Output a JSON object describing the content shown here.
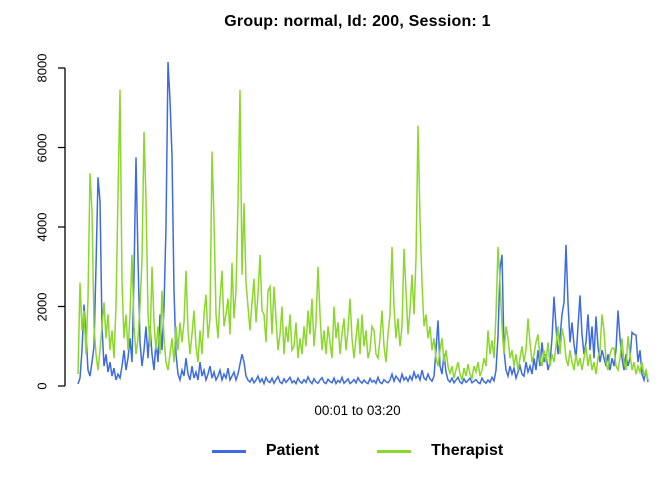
{
  "chart_data": {
    "type": "line",
    "title": "Group: normal, Id: 200, Session: 1",
    "xlabel": "00:01 to 03:20",
    "ylabel": "",
    "ylim": [
      0,
      8200
    ],
    "yticks": [
      0,
      2000,
      4000,
      6000,
      8000
    ],
    "grid": false,
    "legend_position": "bottom",
    "x_axis_ticks": "none",
    "series": [
      {
        "name": "Patient",
        "color": "#3D6BE1",
        "values": [
          50,
          200,
          900,
          2050,
          1300,
          400,
          250,
          600,
          1000,
          3000,
          5250,
          4650,
          1500,
          500,
          800,
          350,
          600,
          250,
          450,
          150,
          300,
          200,
          500,
          900,
          400,
          700,
          1200,
          600,
          2800,
          5750,
          3200,
          1100,
          500,
          900,
          1500,
          700,
          1500,
          800,
          400,
          1100,
          600,
          1800,
          900,
          2000,
          4000,
          8150,
          7200,
          5800,
          2400,
          800,
          300,
          150,
          400,
          250,
          700,
          300,
          150,
          500,
          200,
          350,
          150,
          600,
          250,
          400,
          150,
          300,
          500,
          200,
          350,
          150,
          250,
          400,
          150,
          300,
          200,
          450,
          150,
          250,
          350,
          150,
          300,
          550,
          800,
          600,
          250,
          150,
          100,
          200,
          80,
          150,
          250,
          100,
          180,
          60,
          220,
          120,
          90,
          200,
          70,
          160,
          240,
          100,
          60,
          180,
          90,
          150,
          220,
          80,
          130,
          60,
          200,
          110,
          70,
          160,
          90,
          230,
          120,
          60,
          180,
          100,
          70,
          150,
          210,
          90,
          60,
          170,
          110,
          80,
          200,
          60,
          140,
          90,
          220,
          70,
          120,
          180,
          60,
          100,
          160,
          80,
          210,
          120,
          70,
          150,
          90,
          60,
          190,
          100,
          140,
          70,
          220,
          90,
          60,
          160,
          110,
          80,
          150,
          300,
          120,
          250,
          180,
          100,
          300,
          150,
          220,
          120,
          250,
          150,
          350,
          200,
          280,
          150,
          400,
          200,
          150,
          300,
          180,
          120,
          250,
          900,
          1650,
          500,
          300,
          800,
          350,
          150,
          100,
          200,
          80,
          150,
          220,
          100,
          60,
          180,
          90,
          140,
          200,
          80,
          120,
          160,
          90,
          60,
          200,
          110,
          70,
          150,
          90,
          220,
          130,
          400,
          1250,
          2950,
          3300,
          900,
          400,
          250,
          500,
          300,
          450,
          200,
          350,
          500,
          300,
          250,
          600,
          350,
          500,
          300,
          700,
          400,
          900,
          500,
          1100,
          600,
          800,
          400,
          600,
          1200,
          2250,
          1500,
          800,
          1200,
          1800,
          2100,
          3550,
          2100,
          1100,
          1600,
          1050,
          700,
          1500,
          2280,
          1300,
          800,
          1100,
          1800,
          900,
          1500,
          700,
          1750,
          1000,
          600,
          900,
          700,
          500,
          800,
          400,
          700,
          500,
          900,
          1900,
          1200,
          700,
          400,
          800,
          500,
          700,
          1350,
          1300,
          1280,
          600,
          900,
          300,
          150,
          400,
          100
        ]
      },
      {
        "name": "Therapist",
        "color": "#8CD72D",
        "values": [
          300,
          2600,
          1400,
          1900,
          800,
          2200,
          5350,
          4400,
          1500,
          800,
          400,
          900,
          1500,
          2100,
          1200,
          1800,
          900,
          1400,
          700,
          2000,
          4800,
          7450,
          2600,
          1200,
          1800,
          900,
          1800,
          3300,
          1500,
          800,
          1200,
          2000,
          3200,
          6400,
          4700,
          1800,
          1000,
          3000,
          1600,
          900,
          1500,
          800,
          2400,
          1200,
          600,
          400,
          800,
          1200,
          600,
          1500,
          900,
          1600,
          1100,
          1600,
          2900,
          1400,
          800,
          1300,
          1900,
          1000,
          600,
          1400,
          800,
          1800,
          2300,
          1200,
          1700,
          5900,
          4200,
          1800,
          1200,
          2200,
          2900,
          1500,
          1800,
          2200,
          1300,
          3100,
          1700,
          2400,
          4600,
          7450,
          2800,
          4600,
          2600,
          2000,
          1400,
          2100,
          2700,
          1600,
          2300,
          3300,
          1900,
          1800,
          1100,
          2400,
          2500,
          1300,
          2500,
          1700,
          900,
          1300,
          2000,
          800,
          1500,
          1100,
          1800,
          900,
          1000,
          1600,
          700,
          1200,
          800,
          1500,
          1000,
          1900,
          1300,
          2200,
          1000,
          1600,
          3000,
          1800,
          900,
          1400,
          800,
          1500,
          1100,
          700,
          2000,
          1200,
          1600,
          800,
          1300,
          1700,
          900,
          1400,
          2200,
          1200,
          700,
          1200,
          1700,
          800,
          1800,
          1000,
          1400,
          700,
          900,
          1500,
          1400,
          800,
          700,
          1200,
          1900,
          1000,
          600,
          1300,
          1800,
          3500,
          2000,
          1200,
          1700,
          1000,
          1500,
          3450,
          2400,
          1300,
          1900,
          2800,
          1800,
          3200,
          6550,
          4200,
          2600,
          1500,
          1800,
          1200,
          1500,
          900,
          1200,
          700,
          500,
          900,
          1200,
          600,
          900,
          500,
          300,
          500,
          200,
          400,
          600,
          300,
          150,
          450,
          250,
          550,
          300,
          200,
          500,
          350,
          600,
          250,
          400,
          700,
          500,
          1400,
          800,
          1150,
          700,
          1800,
          3500,
          2600,
          1500,
          800,
          1500,
          1200,
          700,
          900,
          500,
          800,
          400,
          700,
          1000,
          600,
          900,
          1700,
          1100,
          600,
          800,
          1100,
          1300,
          700,
          500,
          900,
          600,
          1100,
          500,
          800,
          600,
          1000,
          1500,
          800,
          1450,
          1200,
          700,
          500,
          900,
          600,
          400,
          800,
          500,
          700,
          400,
          700,
          1000,
          500,
          800,
          400,
          600,
          300,
          700,
          900,
          1800,
          1400,
          600,
          400,
          800,
          950,
          950,
          500,
          400,
          700,
          1200,
          600,
          400,
          1250,
          800,
          400,
          600,
          300,
          500,
          350,
          600,
          250,
          400,
          150
        ]
      }
    ]
  }
}
